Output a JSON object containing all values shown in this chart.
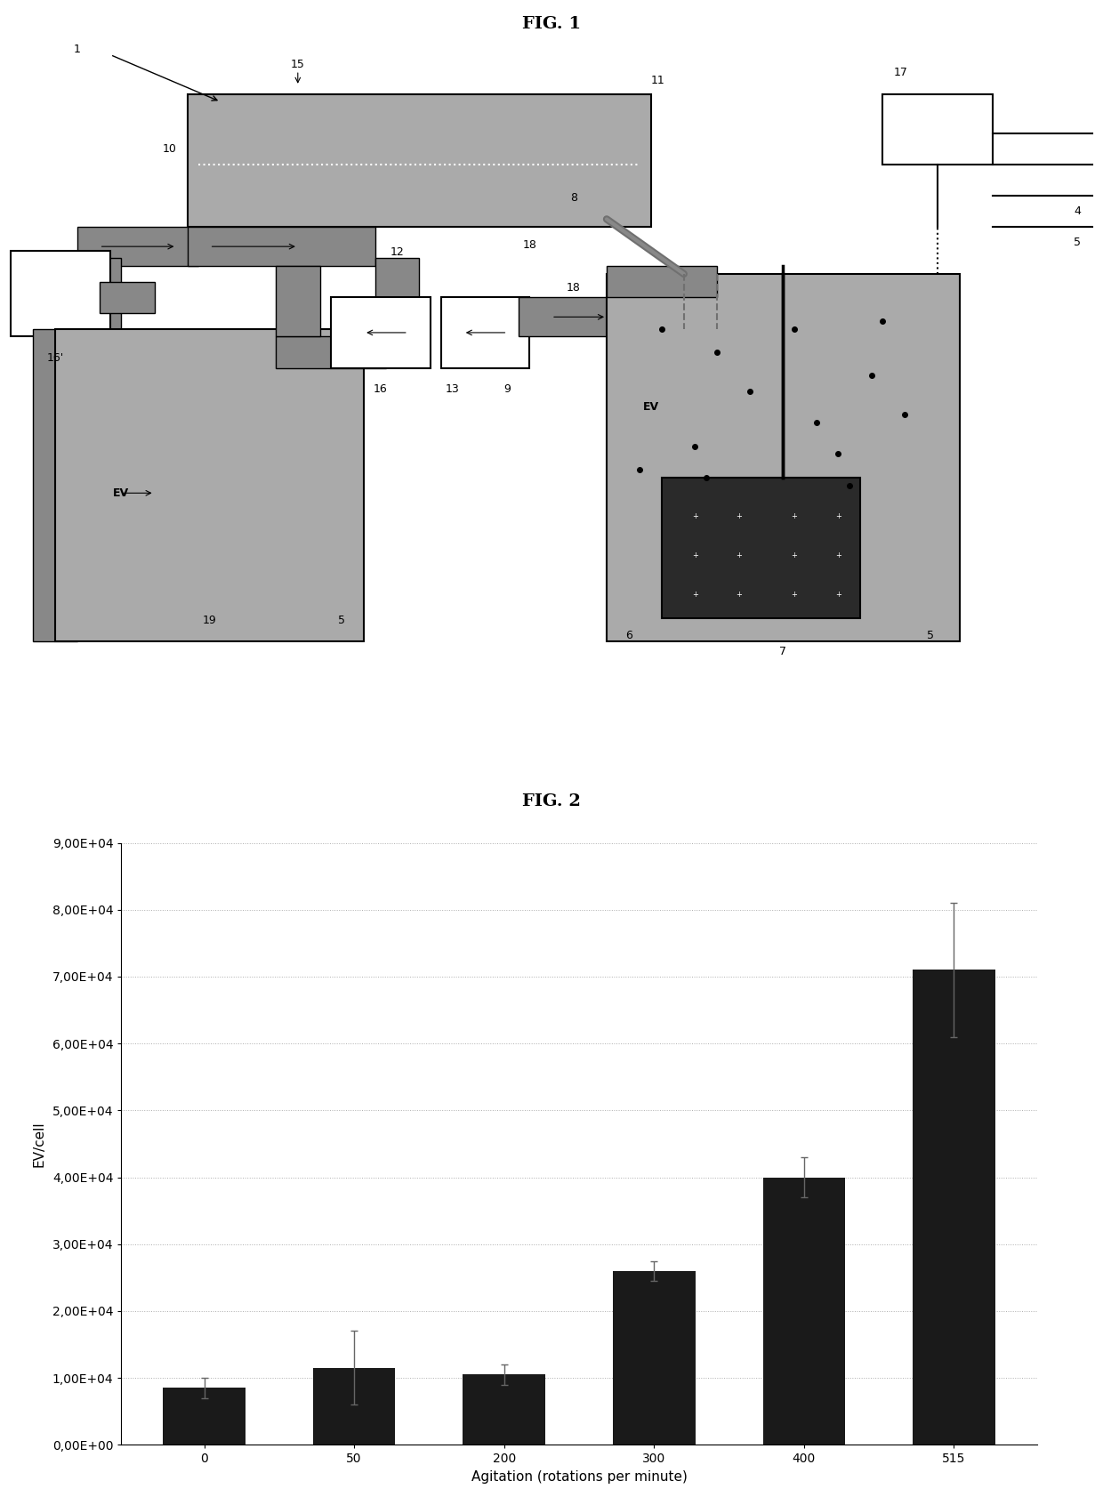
{
  "fig1_title": "FIG. 1",
  "fig2_title": "FIG. 2",
  "bar_categories": [
    "0",
    "50",
    "200",
    "300",
    "400",
    "515"
  ],
  "bar_values": [
    8500,
    11500,
    10500,
    26000,
    40000,
    71000
  ],
  "bar_errors": [
    1500,
    5500,
    1500,
    1500,
    3000,
    10000
  ],
  "bar_color": "#1a1a1a",
  "xlabel": "Agitation (rotations per minute)",
  "ylabel": "EV/cell",
  "ylim_min": 0,
  "ylim_max": 90000,
  "yticks": [
    0,
    10000,
    20000,
    30000,
    40000,
    50000,
    60000,
    70000,
    80000,
    90000
  ],
  "ytick_labels": [
    "0,00E+00",
    "1,00E+04",
    "2,00E+04",
    "3,00E+04",
    "4,00E+04",
    "5,00E+04",
    "6,00E+04",
    "7,00E+04",
    "8,00E+04",
    "9,00E+04"
  ],
  "background_color": "#ffffff",
  "title_fontsize": 14,
  "axis_fontsize": 11,
  "tick_fontsize": 10
}
